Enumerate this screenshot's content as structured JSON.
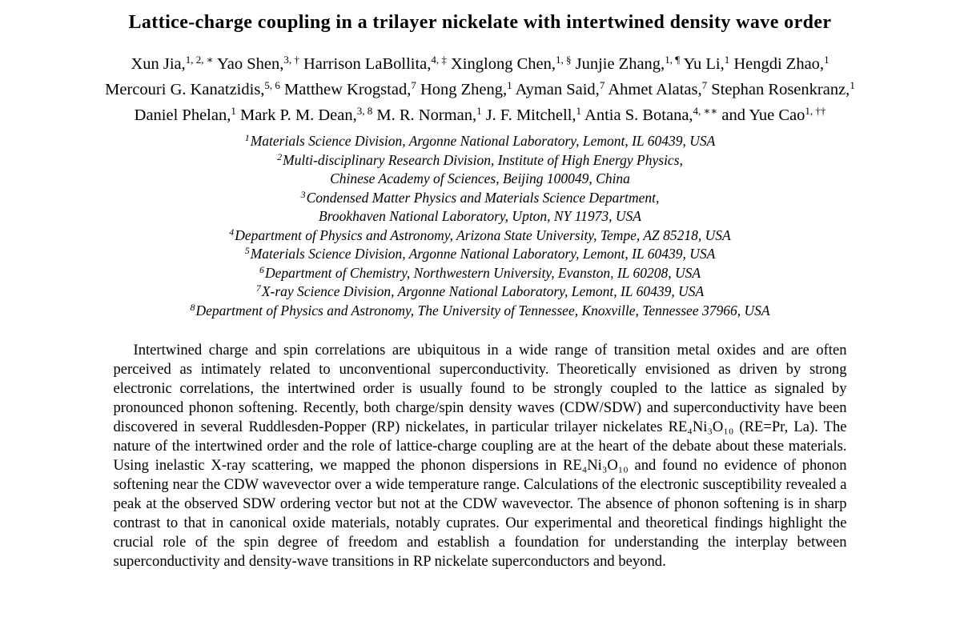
{
  "paper": {
    "title": "Lattice-charge coupling in a trilayer nickelate with intertwined density wave order",
    "author_lines": [
      [
        {
          "name": "Xun Jia,",
          "sup": "1, 2, ∗"
        },
        {
          "name": "Yao Shen,",
          "sup": "3, †"
        },
        {
          "name": "Harrison LaBollita,",
          "sup": "4, ‡"
        },
        {
          "name": "Xinglong Chen,",
          "sup": "1, §"
        },
        {
          "name": "Junjie Zhang,",
          "sup": "1, ¶"
        },
        {
          "name": "Yu Li,",
          "sup": "1"
        },
        {
          "name": "Hengdi Zhao,",
          "sup": "1"
        }
      ],
      [
        {
          "name": "Mercouri G. Kanatzidis,",
          "sup": "5, 6"
        },
        {
          "name": "Matthew Krogstad,",
          "sup": "7"
        },
        {
          "name": "Hong Zheng,",
          "sup": "1"
        },
        {
          "name": "Ayman Said,",
          "sup": "7"
        },
        {
          "name": "Ahmet Alatas,",
          "sup": "7"
        },
        {
          "name": "Stephan Rosenkranz,",
          "sup": "1"
        }
      ],
      [
        {
          "name": "Daniel Phelan,",
          "sup": "1"
        },
        {
          "name": "Mark P. M. Dean,",
          "sup": "3, 8"
        },
        {
          "name": "M. R. Norman,",
          "sup": "1"
        },
        {
          "name": "J. F. Mitchell,",
          "sup": "1"
        },
        {
          "name": "Antia S. Botana,",
          "sup": "4, ∗∗"
        },
        {
          "name": "and Yue Cao",
          "sup": "1, ††"
        }
      ]
    ],
    "affiliation_lines": [
      {
        "sup": "1",
        "text": "Materials Science Division, Argonne National Laboratory, Lemont, IL 60439, USA"
      },
      {
        "sup": "2",
        "text": "Multi-disciplinary Research Division, Institute of High Energy Physics,"
      },
      {
        "sup": "",
        "text": "Chinese Academy of Sciences, Beijing 100049, China"
      },
      {
        "sup": "3",
        "text": "Condensed Matter Physics and Materials Science Department,"
      },
      {
        "sup": "",
        "text": "Brookhaven National Laboratory, Upton, NY 11973, USA"
      },
      {
        "sup": "4",
        "text": "Department of Physics and Astronomy, Arizona State University, Tempe, AZ 85218, USA"
      },
      {
        "sup": "5",
        "text": "Materials Science Division, Argonne National Laboratory, Lemont, IL 60439, USA"
      },
      {
        "sup": "6",
        "text": "Department of Chemistry, Northwestern University, Evanston, IL 60208, USA"
      },
      {
        "sup": "7",
        "text": "X-ray Science Division, Argonne National Laboratory, Lemont, IL 60439, USA"
      },
      {
        "sup": "8",
        "text": "Department of Physics and Astronomy, The University of Tennessee, Knoxville, Tennessee 37966, USA"
      }
    ],
    "abstract": "Intertwined charge and spin correlations are ubiquitous in a wide range of transition metal oxides and are often perceived as intimately related to unconventional superconductivity. Theoretically envisioned as driven by strong electronic correlations, the intertwined order is usually found to be strongly coupled to the lattice as signaled by pronounced phonon softening. Recently, both charge/spin density waves (CDW/SDW) and superconductivity have been discovered in several Ruddlesden-Popper (RP) nickelates, in particular trilayer nickelates RE₄Ni₃O₁₀ (RE=Pr, La). The nature of the intertwined order and the role of lattice-charge coupling are at the heart of the debate about these materials. Using inelastic X-ray scattering, we mapped the phonon dispersions in RE₄Ni₃O₁₀ and found no evidence of phonon softening near the CDW wavevector over a wide temperature range. Calculations of the electronic susceptibility revealed a peak at the observed SDW ordering vector but not at the CDW wavevector. The absence of phonon softening is in sharp contrast to that in canonical oxide materials, notably cuprates. Our experimental and theoretical findings highlight the crucial role of the spin degree of freedom and establish a foundation for understanding the interplay between superconductivity and density-wave transitions in RP nickelate superconductors and beyond."
  }
}
